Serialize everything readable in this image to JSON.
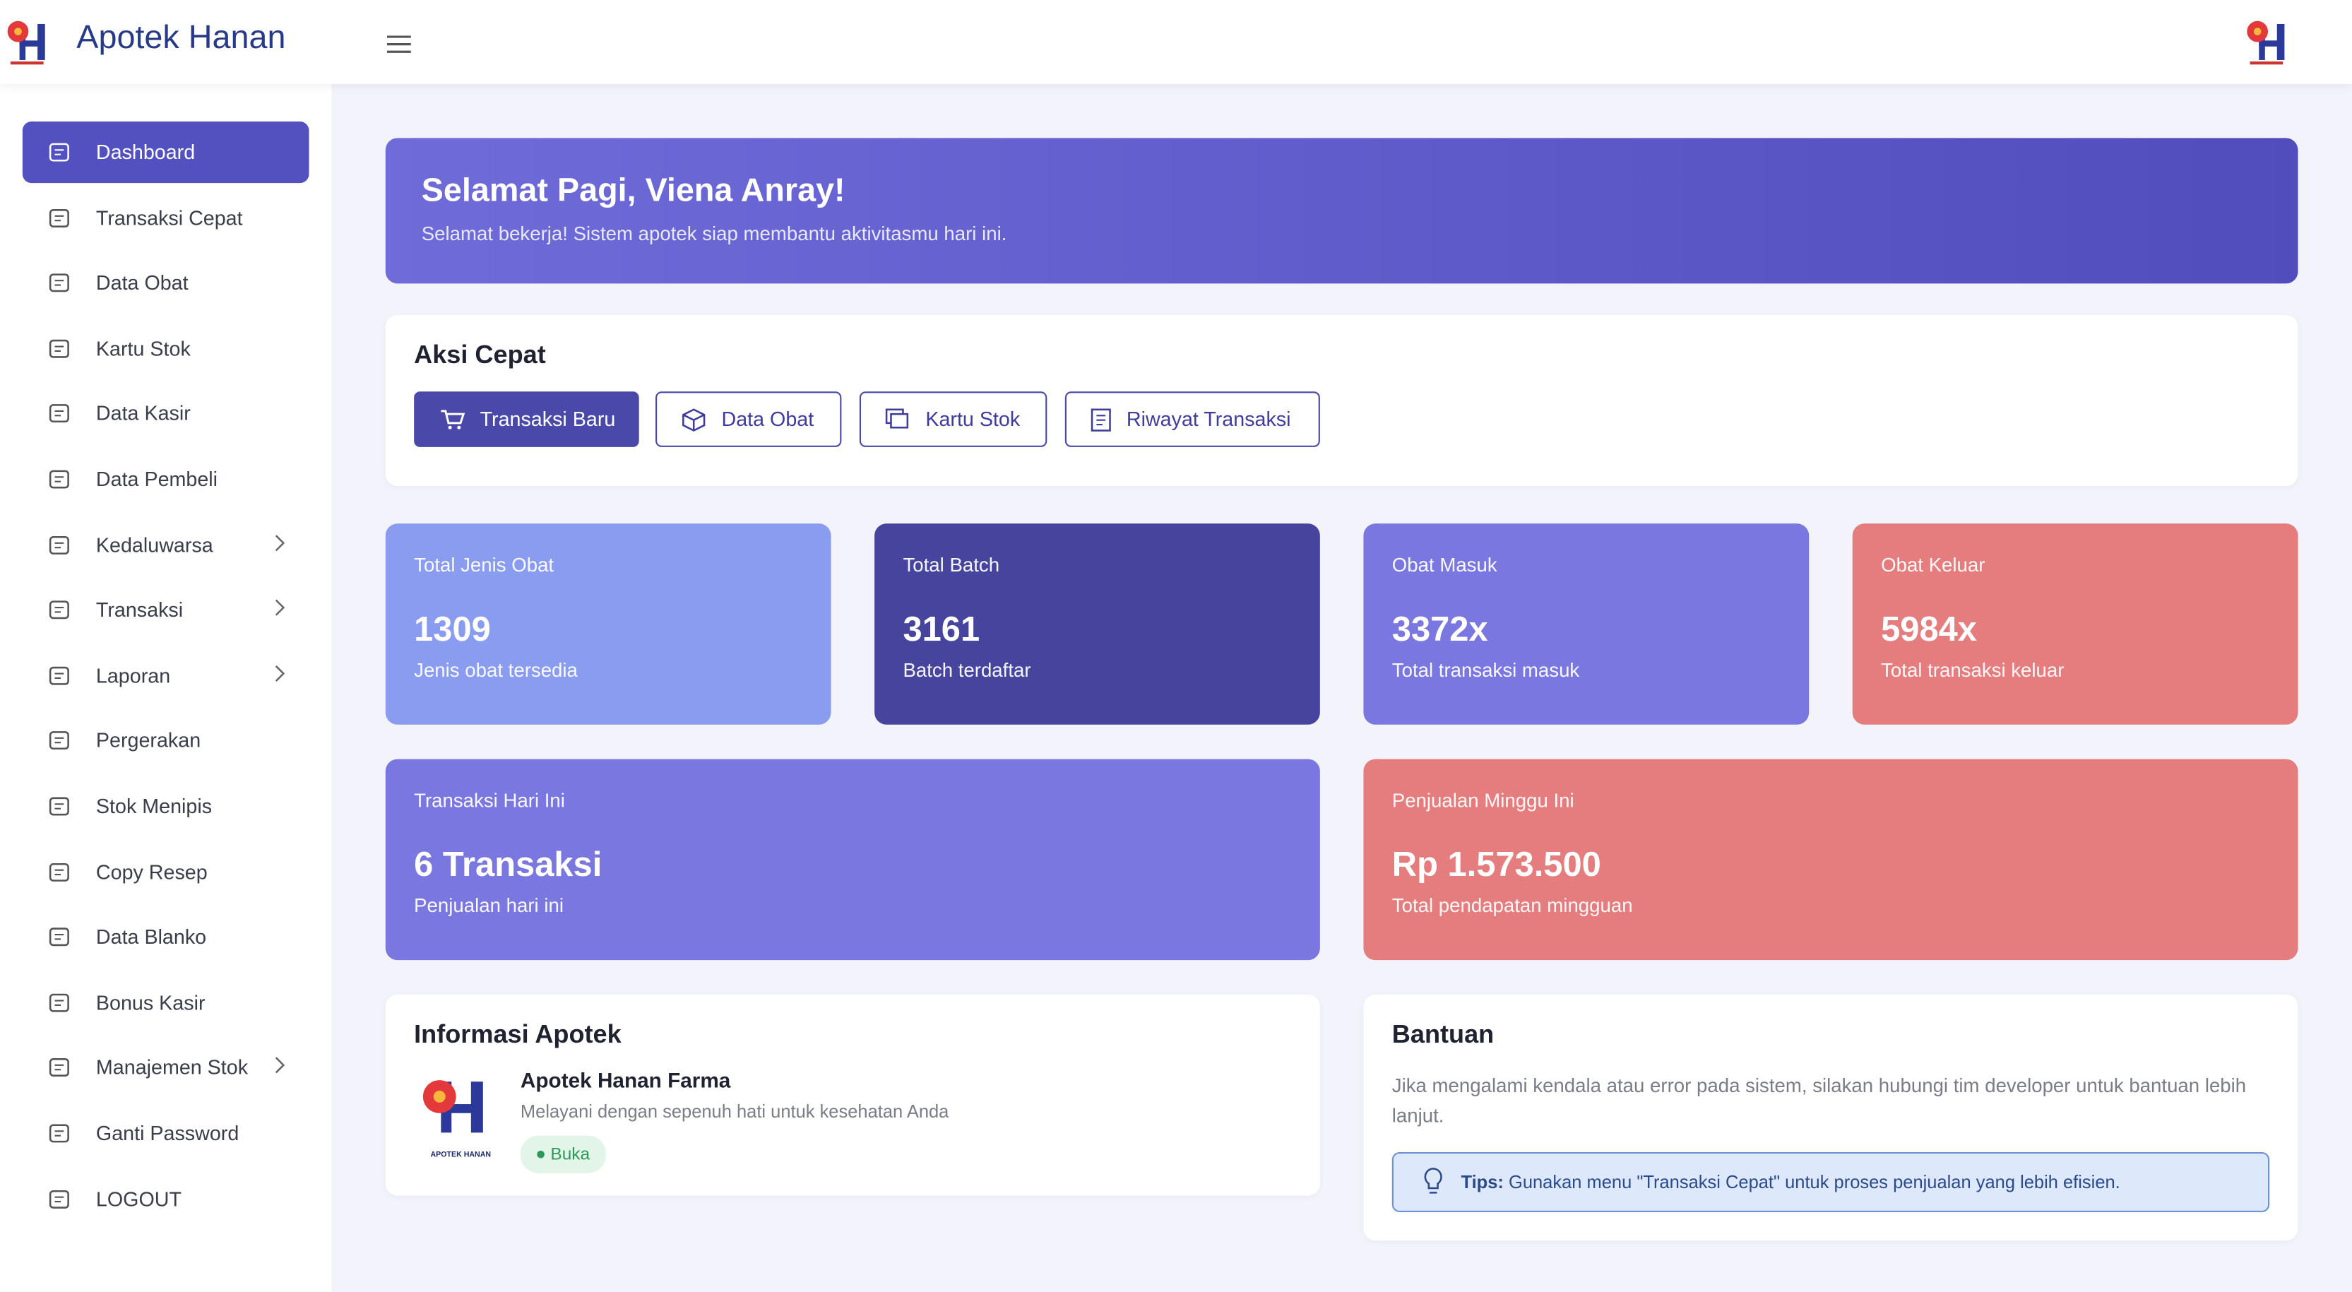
{
  "header": {
    "brand": "Apotek Hanan"
  },
  "sidebar": {
    "items": [
      "Dashboard",
      "Transaksi Cepat",
      "Data Obat",
      "Kartu Stok",
      "Data Kasir",
      "Data Pembeli",
      "Kedaluwarsa",
      "Transaksi",
      "Laporan",
      "Pergerakan",
      "Stok Menipis",
      "Copy Resep",
      "Data Blanko",
      "Bonus Kasir",
      "Manajemen Stok",
      "Ganti Password",
      "LOGOUT"
    ]
  },
  "greeting": {
    "title": "Selamat Pagi, Viena Anray!",
    "subtitle": "Selamat bekerja! Sistem apotek siap membantu aktivitasmu hari ini."
  },
  "quick_actions": {
    "title": "Aksi Cepat",
    "buttons": [
      "Transaksi Baru",
      "Data Obat",
      "Kartu Stok",
      "Riwayat Transaksi"
    ]
  },
  "stats": [
    {
      "label": "Total Jenis Obat",
      "value": "1309",
      "desc": "Jenis obat tersedia"
    },
    {
      "label": "Total Batch",
      "value": "3161",
      "desc": "Batch terdaftar"
    },
    {
      "label": "Obat Masuk",
      "value": "3372x",
      "desc": "Total transaksi masuk"
    },
    {
      "label": "Obat Keluar",
      "value": "5984x",
      "desc": "Total transaksi keluar"
    },
    {
      "label": "Transaksi Hari Ini",
      "value": "6 Transaksi",
      "desc": "Penjualan hari ini"
    },
    {
      "label": "Penjualan Minggu Ini",
      "value": "Rp 1.573.500",
      "desc": "Total pendapatan mingguan"
    }
  ],
  "info": {
    "title": "Informasi Apotek",
    "logo_text": "APOTEK HANAN",
    "name": "Apotek Hanan Farma",
    "desc": "Melayani dengan sepenuh hati untuk kesehatan Anda",
    "status": "Buka"
  },
  "help": {
    "title": "Bantuan",
    "text": "Jika mengalami kendala atau error pada sistem, silakan hubungi tim developer untuk bantuan lebih lanjut.",
    "tips_label": "Tips:",
    "tips_text": "Gunakan menu \"Transaksi Cepat\" untuk proses penjualan yang lebih efisien."
  }
}
